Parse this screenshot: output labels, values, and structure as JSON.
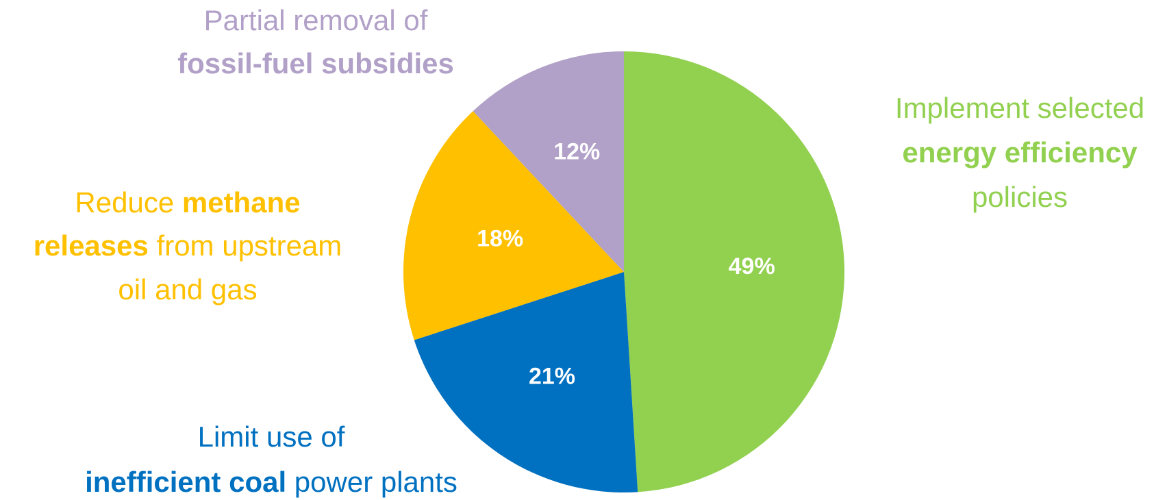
{
  "chart_data": {
    "type": "pie",
    "labels": [
      [
        [
          {
            "text": "Implement selected"
          }
        ],
        [
          {
            "text": "energy efficiency",
            "bold": true
          }
        ],
        [
          {
            "text": "policies"
          }
        ]
      ],
      [
        [
          {
            "text": "Limit use of"
          }
        ],
        [
          {
            "text": "inefficient coal",
            "bold": true
          },
          {
            "text": " power plants"
          }
        ]
      ],
      [
        [
          {
            "text": "Reduce "
          },
          {
            "text": "methane",
            "bold": true
          }
        ],
        [
          {
            "text": "releases",
            "bold": true
          },
          {
            "text": " from upstream"
          }
        ],
        [
          {
            "text": "oil and gas"
          }
        ]
      ],
      [
        [
          {
            "text": "Partial removal of"
          }
        ],
        [
          {
            "text": "fossil-fuel subsidies",
            "bold": true
          }
        ]
      ]
    ],
    "values": [
      49,
      21,
      18,
      12
    ],
    "value_labels": [
      "49%",
      "21%",
      "18%",
      "12%"
    ],
    "colors": [
      "#92d050",
      "#0070c0",
      "#ffc000",
      "#b1a0c7"
    ]
  }
}
